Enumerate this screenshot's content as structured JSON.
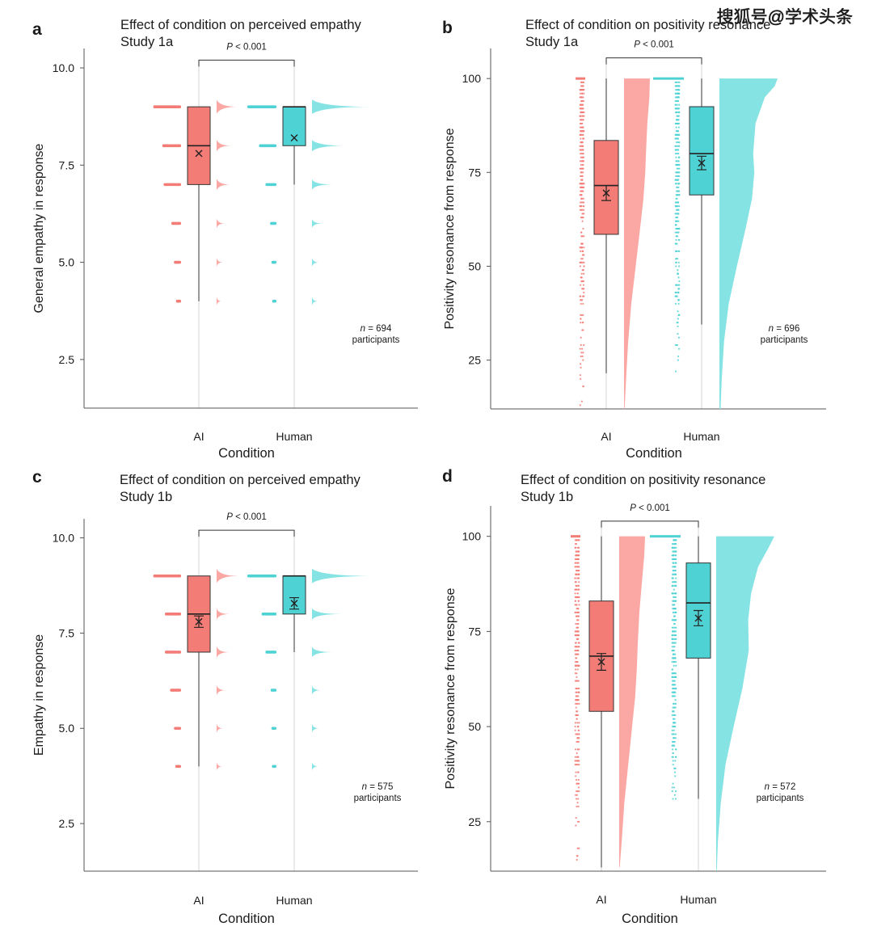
{
  "watermark": "搜狐号@学术头条",
  "colors": {
    "ai": "#f47c77",
    "human": "#4fd2d4",
    "ai_light": "#fba7a4",
    "human_light": "#86e3e4",
    "axis": "#555555",
    "text": "#1a1a1a"
  },
  "chart_data": [
    {
      "panel": "a",
      "type": "box",
      "title_line1": "Effect of condition on perceived empathy",
      "title_line2": "Study 1a",
      "xlabel": "Condition",
      "ylabel": "General empathy in response",
      "categories": [
        "AI",
        "Human"
      ],
      "ylim": [
        1.25,
        10.5
      ],
      "yticks": [
        10.0,
        7.5,
        5.0,
        2.5
      ],
      "ytick_labels": [
        "10.0",
        "7.5",
        "5.0",
        "2.5"
      ],
      "significance": "P < 0.001",
      "sig_y": 10.2,
      "n_label": "n = 694",
      "n_sub": "participants",
      "discrete": true,
      "points_range": [
        4,
        9
      ],
      "groups": [
        {
          "name": "AI",
          "q1": 7,
          "median": 8,
          "q3": 9,
          "whisker_low": 4,
          "whisker_high": 9,
          "mean": 7.8,
          "mean_err": 0,
          "counts": {
            "9": 0.95,
            "8": 0.6,
            "7": 0.55,
            "6": 0.25,
            "5": 0.15,
            "4": 0.07
          }
        },
        {
          "name": "Human",
          "q1": 8,
          "median": 9,
          "q3": 9,
          "whisker_low": 7,
          "whisker_high": 9,
          "mean": 8.2,
          "mean_err": 0,
          "counts": {
            "9": 1.0,
            "8": 0.55,
            "7": 0.3,
            "6": 0.12,
            "5": 0.07,
            "4": 0.04
          }
        }
      ]
    },
    {
      "panel": "b",
      "type": "box",
      "title_line1": "Effect of condition on positivity resonance",
      "title_line2": "Study 1a",
      "xlabel": "Condition",
      "ylabel": "Positivity resonance from response",
      "categories": [
        "AI",
        "Human"
      ],
      "ylim": [
        12,
        108
      ],
      "yticks": [
        100,
        75,
        50,
        25
      ],
      "ytick_labels": [
        "100",
        "75",
        "50",
        "25"
      ],
      "significance": "P < 0.001",
      "sig_y": 105.5,
      "n_label": "n = 696",
      "n_sub": "participants",
      "discrete": false,
      "points_range": [
        13,
        100
      ],
      "groups": [
        {
          "name": "AI",
          "q1": 58.5,
          "median": 71.5,
          "q3": 83.5,
          "whisker_low": 21.5,
          "whisker_high": 100,
          "mean": 69.5,
          "mean_err": 2.0,
          "density": [
            [
              12,
              0.02
            ],
            [
              20,
              0.08
            ],
            [
              30,
              0.16
            ],
            [
              40,
              0.28
            ],
            [
              50,
              0.45
            ],
            [
              60,
              0.62
            ],
            [
              68,
              0.75
            ],
            [
              75,
              0.82
            ],
            [
              82,
              0.86
            ],
            [
              88,
              0.9
            ],
            [
              95,
              0.98
            ],
            [
              100,
              1.0
            ]
          ]
        },
        {
          "name": "Human",
          "q1": 69,
          "median": 80,
          "q3": 92.5,
          "whisker_low": 34.5,
          "whisker_high": 100,
          "mean": 77.5,
          "mean_err": 1.8,
          "density": [
            [
              12,
              0.02
            ],
            [
              20,
              0.04
            ],
            [
              30,
              0.08
            ],
            [
              40,
              0.16
            ],
            [
              50,
              0.3
            ],
            [
              60,
              0.45
            ],
            [
              68,
              0.56
            ],
            [
              75,
              0.6
            ],
            [
              80,
              0.58
            ],
            [
              88,
              0.62
            ],
            [
              95,
              0.78
            ],
            [
              98,
              0.95
            ],
            [
              100,
              1.0
            ]
          ]
        }
      ]
    },
    {
      "panel": "c",
      "type": "box",
      "title_line1": "Effect of condition on perceived empathy",
      "title_line2": "Study 1b",
      "xlabel": "Condition",
      "ylabel": "Empathy in response",
      "categories": [
        "AI",
        "Human"
      ],
      "ylim": [
        1.25,
        10.5
      ],
      "yticks": [
        10.0,
        7.5,
        5.0,
        2.5
      ],
      "ytick_labels": [
        "10.0",
        "7.5",
        "5.0",
        "2.5"
      ],
      "significance": "P < 0.001",
      "sig_y": 10.2,
      "n_label": "n = 575",
      "n_sub": "participants",
      "discrete": true,
      "points_range": [
        4,
        9
      ],
      "groups": [
        {
          "name": "AI",
          "q1": 7,
          "median": 8,
          "q3": 9,
          "whisker_low": 4,
          "whisker_high": 9,
          "mean": 7.8,
          "mean_err": 0.15,
          "counts": {
            "9": 0.95,
            "8": 0.5,
            "7": 0.5,
            "6": 0.3,
            "5": 0.15,
            "4": 0.1
          }
        },
        {
          "name": "Human",
          "q1": 8,
          "median": 9,
          "q3": 9,
          "whisker_low": 7,
          "whisker_high": 9,
          "mean": 8.28,
          "mean_err": 0.15,
          "counts": {
            "9": 1.0,
            "8": 0.45,
            "7": 0.3,
            "6": 0.1,
            "5": 0.07,
            "4": 0.05
          }
        }
      ]
    },
    {
      "panel": "d",
      "type": "box",
      "title_line1": "Effect of condition on positivity resonance",
      "title_line2": "Study 1b",
      "xlabel": "Condition",
      "ylabel": "Positivity resonance from response",
      "categories": [
        "AI",
        "Human"
      ],
      "ylim": [
        12,
        108
      ],
      "yticks": [
        100,
        75,
        50,
        25
      ],
      "ytick_labels": [
        "100",
        "75",
        "50",
        "25"
      ],
      "significance": "P < 0.001",
      "sig_y": 104,
      "n_label": "n = 572",
      "n_sub": "participants",
      "discrete": false,
      "points_range": [
        13,
        100
      ],
      "groups": [
        {
          "name": "AI",
          "q1": 54,
          "median": 68.5,
          "q3": 83,
          "whisker_low": 13,
          "whisker_high": 100,
          "mean": 67,
          "mean_err": 2.2,
          "density": [
            [
              13,
              0.02
            ],
            [
              20,
              0.1
            ],
            [
              30,
              0.2
            ],
            [
              40,
              0.35
            ],
            [
              50,
              0.5
            ],
            [
              58,
              0.62
            ],
            [
              65,
              0.68
            ],
            [
              72,
              0.72
            ],
            [
              80,
              0.78
            ],
            [
              88,
              0.88
            ],
            [
              95,
              0.97
            ],
            [
              100,
              1.0
            ]
          ]
        },
        {
          "name": "Human",
          "q1": 68,
          "median": 82.5,
          "q3": 93,
          "whisker_low": 31,
          "whisker_high": 100,
          "mean": 78.5,
          "mean_err": 2.0,
          "density": [
            [
              12,
              0.01
            ],
            [
              20,
              0.03
            ],
            [
              30,
              0.08
            ],
            [
              40,
              0.16
            ],
            [
              50,
              0.3
            ],
            [
              60,
              0.45
            ],
            [
              70,
              0.56
            ],
            [
              78,
              0.55
            ],
            [
              85,
              0.6
            ],
            [
              92,
              0.72
            ],
            [
              97,
              0.9
            ],
            [
              100,
              1.0
            ]
          ]
        }
      ]
    }
  ]
}
